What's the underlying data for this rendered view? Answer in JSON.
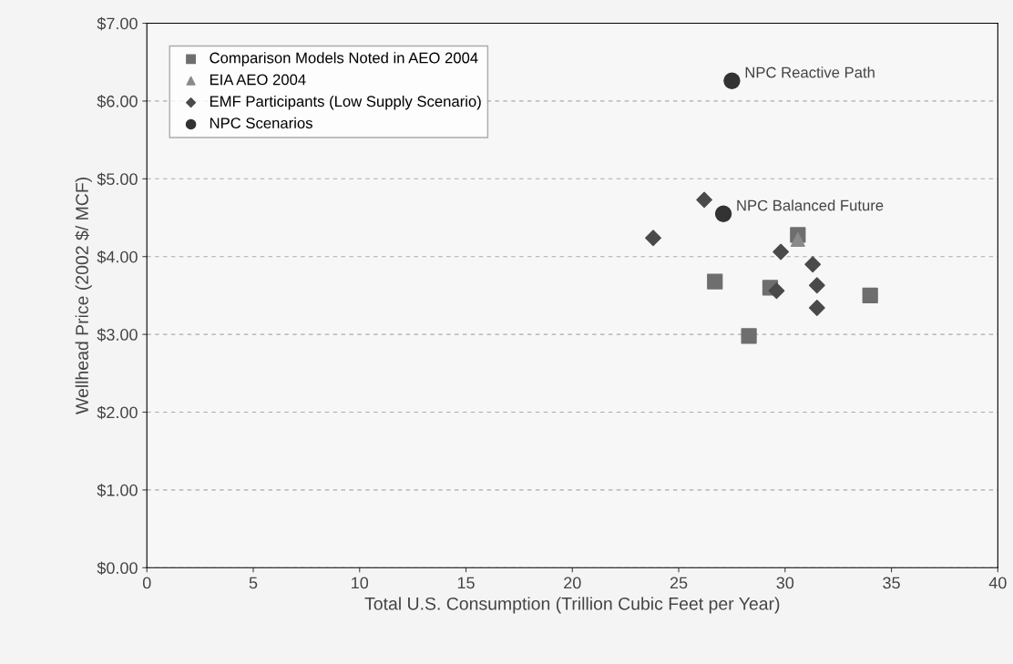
{
  "chart_data": {
    "type": "scatter",
    "xlabel": "Total U.S. Consumption (Trillion Cubic Feet per Year)",
    "ylabel": "Wellhead Price (2002 $/ MCF)",
    "series": [
      {
        "name": "Comparison Models Noted in AEO 2004",
        "color": "#6e6e6e",
        "marker": "square",
        "x": [
          26.7,
          29.3,
          28.3,
          34.0,
          30.6
        ],
        "values": [
          3.68,
          3.6,
          2.98,
          3.5,
          4.28
        ]
      },
      {
        "name": "EIA AEO 2004",
        "color": "#8a8a8a",
        "marker": "triangle",
        "x": [
          30.6
        ],
        "values": [
          4.22
        ]
      },
      {
        "name": "EMF Participants (Low Supply Scenario)",
        "color": "#4a4a4a",
        "marker": "diamond",
        "x": [
          23.8,
          26.2,
          29.8,
          31.3,
          31.5,
          31.5,
          29.6
        ],
        "values": [
          4.24,
          4.73,
          4.06,
          3.9,
          3.63,
          3.34,
          3.56
        ]
      },
      {
        "name": "NPC Scenarios",
        "color": "#333333",
        "marker": "circle",
        "x": [
          27.1,
          27.5
        ],
        "values": [
          4.55,
          6.26
        ]
      }
    ],
    "annotations": [
      {
        "text": "NPC Balanced Future",
        "x": 27.1,
        "y": 4.55
      },
      {
        "text": "NPC Reactive Path",
        "x": 27.5,
        "y": 6.26
      }
    ],
    "xlim": [
      0,
      40
    ],
    "xticks": [
      0,
      5,
      10,
      15,
      20,
      25,
      30,
      35,
      40
    ],
    "ylim": [
      0,
      7
    ],
    "yticks": [
      {
        "value": 0,
        "label": "$0.00"
      },
      {
        "value": 1,
        "label": "$1.00"
      },
      {
        "value": 2,
        "label": "$2.00"
      },
      {
        "value": 3,
        "label": "$3.00"
      },
      {
        "value": 4,
        "label": "$4.00"
      },
      {
        "value": 5,
        "label": "$5.00"
      },
      {
        "value": 6,
        "label": "$6.00"
      },
      {
        "value": 7,
        "label": "$7.00"
      }
    ],
    "grid": "y",
    "legend": "top left"
  }
}
